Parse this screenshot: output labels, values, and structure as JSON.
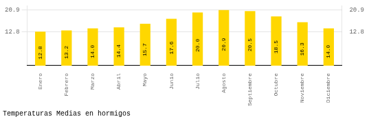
{
  "chart_data": {
    "type": "bar",
    "title": "Temperaturas Medias en hormigos",
    "categories": [
      "Enero",
      "Febrero",
      "Marzo",
      "Abril",
      "Mayo",
      "Junio",
      "Julio",
      "Agosto",
      "Septiembre",
      "Octubre",
      "Noviembre",
      "Diciembre"
    ],
    "values": [
      12.8,
      13.2,
      14.0,
      14.4,
      15.7,
      17.6,
      20.0,
      20.9,
      20.5,
      18.5,
      16.3,
      14.0
    ],
    "value_labels": [
      "12.8",
      "13.2",
      "14.0",
      "14.4",
      "15.7",
      "17.6",
      "20.0",
      "20.9",
      "20.5",
      "18.5",
      "16.3",
      "14.0"
    ],
    "data_labels": true,
    "color": "#FFD700",
    "ylim": [
      0,
      22.5
    ],
    "yticks": [
      12.8,
      20.9
    ],
    "y2lim": [
      0,
      22.5
    ],
    "y2ticks": [
      12.8,
      20.9
    ],
    "grid": true
  }
}
